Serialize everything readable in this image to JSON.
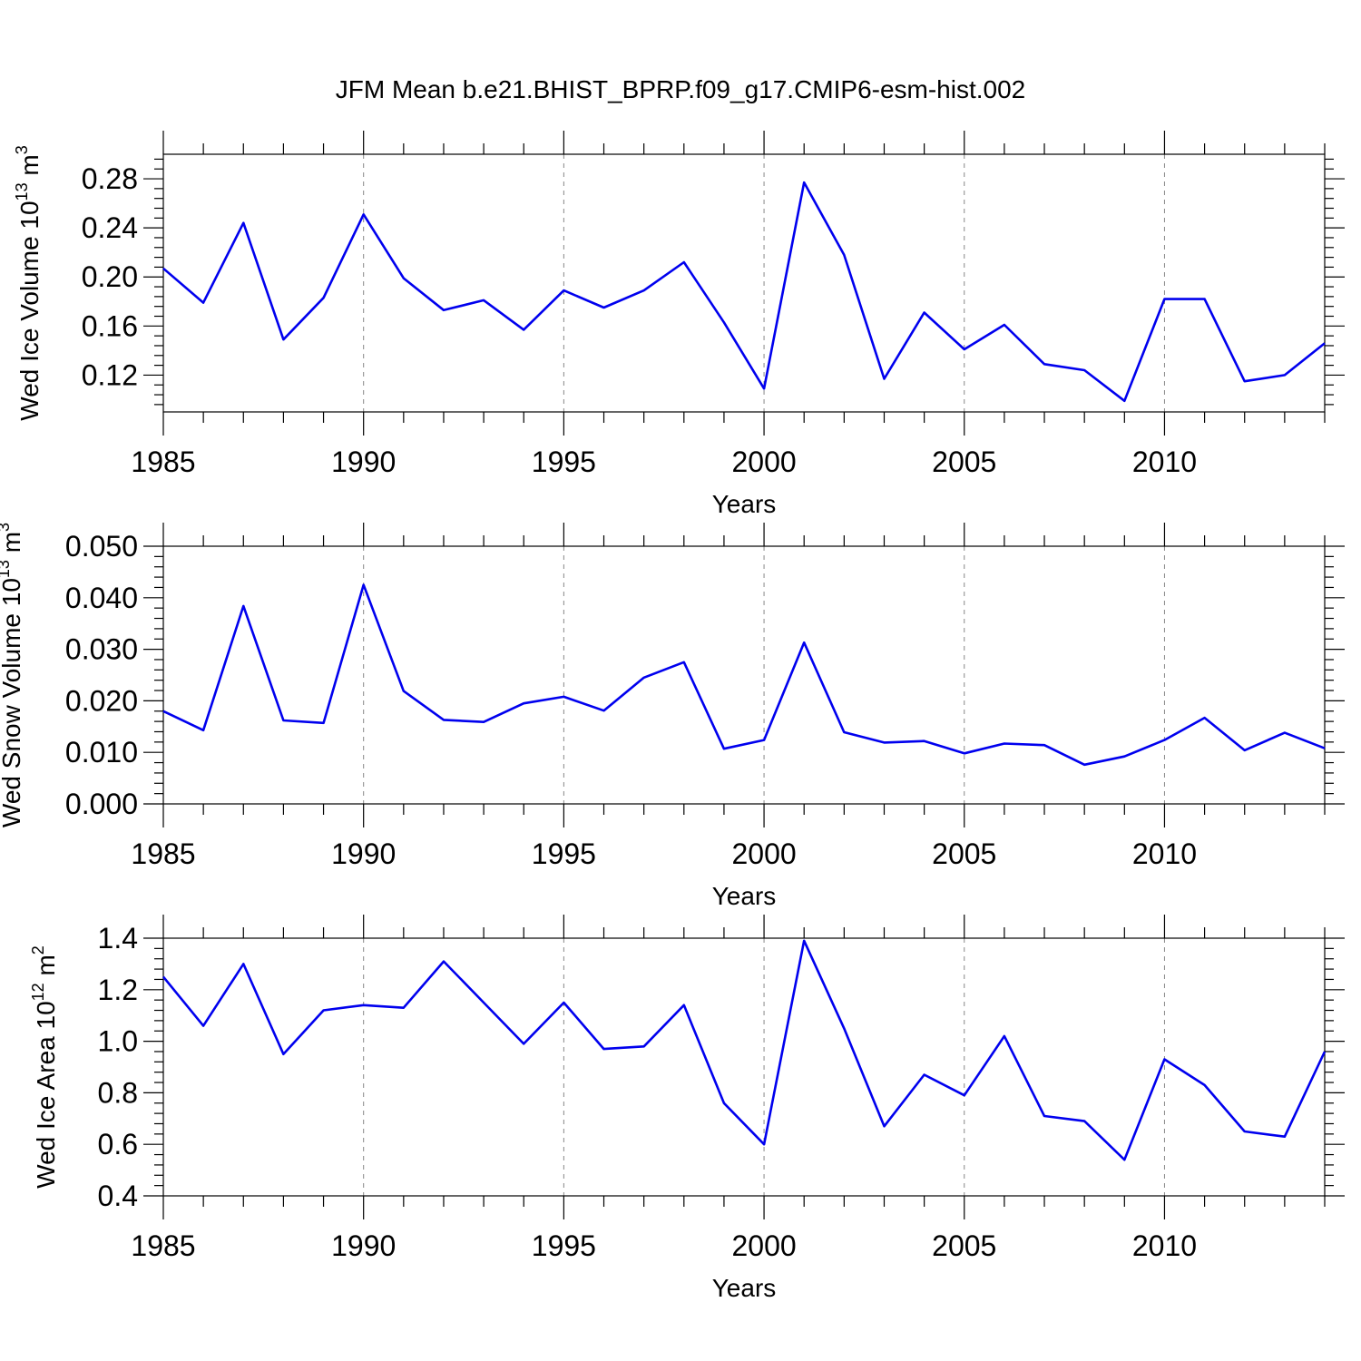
{
  "title": "JFM Mean b.e21.BHIST_BPRP.f09_g17.CMIP6-esm-hist.002",
  "line_color": "#0000ee",
  "chart_data": [
    {
      "type": "line",
      "xlabel": "Years",
      "ylabel_main": "Wed Ice Volume 10",
      "ylabel_exp": "13",
      "ylabel_unit": " m",
      "ylabel_unit_exp": "3",
      "xlim": [
        1985,
        2014
      ],
      "ylim": [
        0.09,
        0.3
      ],
      "xticks": [
        "1985",
        "1990",
        "1995",
        "2000",
        "2005",
        "2010"
      ],
      "yticks": [
        "0.12",
        "0.16",
        "0.20",
        "0.24",
        "0.28"
      ],
      "x": [
        1985,
        1986,
        1987,
        1988,
        1989,
        1990,
        1991,
        1992,
        1993,
        1994,
        1995,
        1996,
        1997,
        1998,
        1999,
        2000,
        2001,
        2002,
        2003,
        2004,
        2005,
        2006,
        2007,
        2008,
        2009,
        2010,
        2011,
        2012,
        2013,
        2014
      ],
      "values": [
        0.207,
        0.179,
        0.244,
        0.149,
        0.183,
        0.251,
        0.199,
        0.173,
        0.181,
        0.157,
        0.189,
        0.175,
        0.189,
        0.212,
        0.163,
        0.109,
        0.277,
        0.218,
        0.117,
        0.171,
        0.141,
        0.161,
        0.129,
        0.124,
        0.099,
        0.182,
        0.182,
        0.115,
        0.12,
        0.146
      ]
    },
    {
      "type": "line",
      "xlabel": "Years",
      "ylabel_main": "Wed Snow Volume 10",
      "ylabel_exp": "13",
      "ylabel_unit": " m",
      "ylabel_unit_exp": "3",
      "xlim": [
        1985,
        2014
      ],
      "ylim": [
        0.0,
        0.05
      ],
      "xticks": [
        "1985",
        "1990",
        "1995",
        "2000",
        "2005",
        "2010"
      ],
      "yticks": [
        "0.000",
        "0.010",
        "0.020",
        "0.030",
        "0.040",
        "0.050"
      ],
      "x": [
        1985,
        1986,
        1987,
        1988,
        1989,
        1990,
        1991,
        1992,
        1993,
        1994,
        1995,
        1996,
        1997,
        1998,
        1999,
        2000,
        2001,
        2002,
        2003,
        2004,
        2005,
        2006,
        2007,
        2008,
        2009,
        2010,
        2011,
        2012,
        2013,
        2014
      ],
      "values": [
        0.018,
        0.0143,
        0.0384,
        0.0162,
        0.0157,
        0.0425,
        0.0219,
        0.0163,
        0.0159,
        0.0195,
        0.0208,
        0.0181,
        0.0245,
        0.0275,
        0.0107,
        0.0124,
        0.0313,
        0.0139,
        0.0119,
        0.0122,
        0.0098,
        0.0117,
        0.0114,
        0.0076,
        0.0092,
        0.0124,
        0.0167,
        0.0104,
        0.0138,
        0.0108
      ]
    },
    {
      "type": "line",
      "xlabel": "Years",
      "ylabel_main": "Wed Ice Area 10",
      "ylabel_exp": "12",
      "ylabel_unit": " m",
      "ylabel_unit_exp": "2",
      "xlim": [
        1985,
        2014
      ],
      "ylim": [
        0.4,
        1.4
      ],
      "xticks": [
        "1985",
        "1990",
        "1995",
        "2000",
        "2005",
        "2010"
      ],
      "yticks": [
        "0.4",
        "0.6",
        "0.8",
        "1.0",
        "1.2",
        "1.4"
      ],
      "x": [
        1985,
        1986,
        1987,
        1988,
        1989,
        1990,
        1991,
        1992,
        1993,
        1994,
        1995,
        1996,
        1997,
        1998,
        1999,
        2000,
        2001,
        2002,
        2003,
        2004,
        2005,
        2006,
        2007,
        2008,
        2009,
        2010,
        2011,
        2012,
        2013,
        2014
      ],
      "values": [
        1.25,
        1.06,
        1.3,
        0.95,
        1.12,
        1.14,
        1.13,
        1.31,
        1.15,
        0.99,
        1.15,
        0.97,
        0.98,
        1.14,
        0.76,
        0.6,
        1.39,
        1.05,
        0.67,
        0.87,
        0.79,
        1.02,
        0.71,
        0.69,
        0.54,
        0.93,
        0.83,
        0.65,
        0.63,
        0.96
      ]
    }
  ]
}
